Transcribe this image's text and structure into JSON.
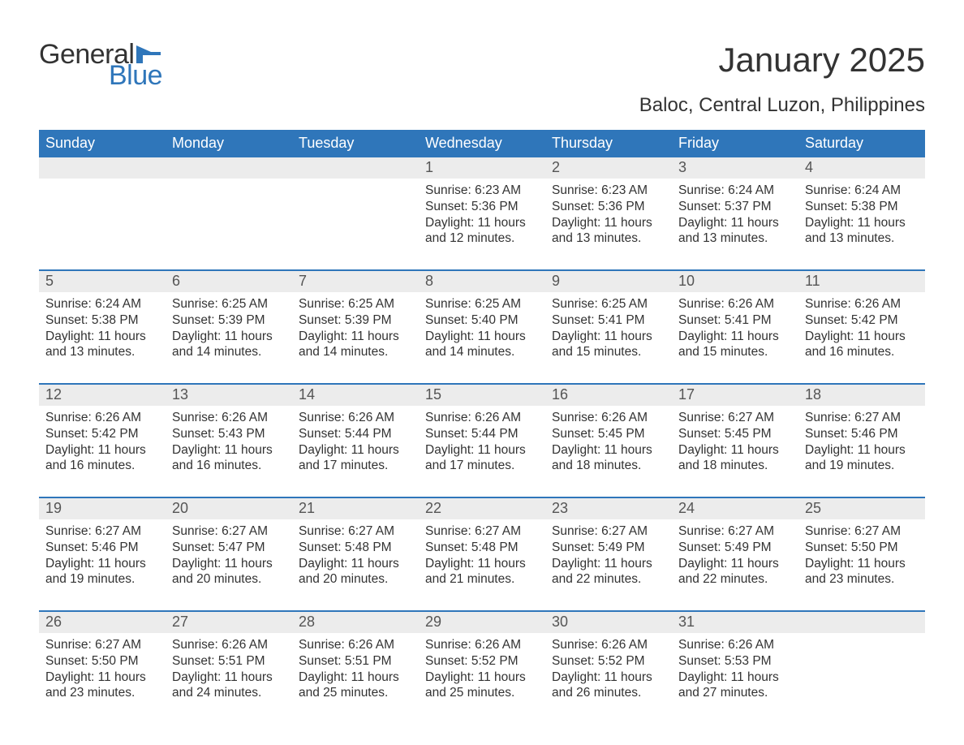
{
  "logo": {
    "text1": "General",
    "text2": "Blue",
    "flag_color": "#2f76ba"
  },
  "title": "January 2025",
  "subtitle": "Baloc, Central Luzon, Philippines",
  "colors": {
    "header_bg": "#2f76ba",
    "header_fg": "#ffffff",
    "daynum_bg": "#ececec",
    "daynum_fg": "#555555",
    "body_fg": "#333333",
    "week_divider": "#2f76ba",
    "page_bg": "#ffffff"
  },
  "typography": {
    "title_fontsize": 42,
    "subtitle_fontsize": 24,
    "dow_fontsize": 18,
    "daynum_fontsize": 18,
    "body_fontsize": 15.5,
    "font_family": "Arial"
  },
  "day_names": [
    "Sunday",
    "Monday",
    "Tuesday",
    "Wednesday",
    "Thursday",
    "Friday",
    "Saturday"
  ],
  "weeks": [
    [
      {
        "n": "",
        "sr": "",
        "ss": "",
        "dl": ""
      },
      {
        "n": "",
        "sr": "",
        "ss": "",
        "dl": ""
      },
      {
        "n": "",
        "sr": "",
        "ss": "",
        "dl": ""
      },
      {
        "n": "1",
        "sr": "Sunrise: 6:23 AM",
        "ss": "Sunset: 5:36 PM",
        "dl": "Daylight: 11 hours and 12 minutes."
      },
      {
        "n": "2",
        "sr": "Sunrise: 6:23 AM",
        "ss": "Sunset: 5:36 PM",
        "dl": "Daylight: 11 hours and 13 minutes."
      },
      {
        "n": "3",
        "sr": "Sunrise: 6:24 AM",
        "ss": "Sunset: 5:37 PM",
        "dl": "Daylight: 11 hours and 13 minutes."
      },
      {
        "n": "4",
        "sr": "Sunrise: 6:24 AM",
        "ss": "Sunset: 5:38 PM",
        "dl": "Daylight: 11 hours and 13 minutes."
      }
    ],
    [
      {
        "n": "5",
        "sr": "Sunrise: 6:24 AM",
        "ss": "Sunset: 5:38 PM",
        "dl": "Daylight: 11 hours and 13 minutes."
      },
      {
        "n": "6",
        "sr": "Sunrise: 6:25 AM",
        "ss": "Sunset: 5:39 PM",
        "dl": "Daylight: 11 hours and 14 minutes."
      },
      {
        "n": "7",
        "sr": "Sunrise: 6:25 AM",
        "ss": "Sunset: 5:39 PM",
        "dl": "Daylight: 11 hours and 14 minutes."
      },
      {
        "n": "8",
        "sr": "Sunrise: 6:25 AM",
        "ss": "Sunset: 5:40 PM",
        "dl": "Daylight: 11 hours and 14 minutes."
      },
      {
        "n": "9",
        "sr": "Sunrise: 6:25 AM",
        "ss": "Sunset: 5:41 PM",
        "dl": "Daylight: 11 hours and 15 minutes."
      },
      {
        "n": "10",
        "sr": "Sunrise: 6:26 AM",
        "ss": "Sunset: 5:41 PM",
        "dl": "Daylight: 11 hours and 15 minutes."
      },
      {
        "n": "11",
        "sr": "Sunrise: 6:26 AM",
        "ss": "Sunset: 5:42 PM",
        "dl": "Daylight: 11 hours and 16 minutes."
      }
    ],
    [
      {
        "n": "12",
        "sr": "Sunrise: 6:26 AM",
        "ss": "Sunset: 5:42 PM",
        "dl": "Daylight: 11 hours and 16 minutes."
      },
      {
        "n": "13",
        "sr": "Sunrise: 6:26 AM",
        "ss": "Sunset: 5:43 PM",
        "dl": "Daylight: 11 hours and 16 minutes."
      },
      {
        "n": "14",
        "sr": "Sunrise: 6:26 AM",
        "ss": "Sunset: 5:44 PM",
        "dl": "Daylight: 11 hours and 17 minutes."
      },
      {
        "n": "15",
        "sr": "Sunrise: 6:26 AM",
        "ss": "Sunset: 5:44 PM",
        "dl": "Daylight: 11 hours and 17 minutes."
      },
      {
        "n": "16",
        "sr": "Sunrise: 6:26 AM",
        "ss": "Sunset: 5:45 PM",
        "dl": "Daylight: 11 hours and 18 minutes."
      },
      {
        "n": "17",
        "sr": "Sunrise: 6:27 AM",
        "ss": "Sunset: 5:45 PM",
        "dl": "Daylight: 11 hours and 18 minutes."
      },
      {
        "n": "18",
        "sr": "Sunrise: 6:27 AM",
        "ss": "Sunset: 5:46 PM",
        "dl": "Daylight: 11 hours and 19 minutes."
      }
    ],
    [
      {
        "n": "19",
        "sr": "Sunrise: 6:27 AM",
        "ss": "Sunset: 5:46 PM",
        "dl": "Daylight: 11 hours and 19 minutes."
      },
      {
        "n": "20",
        "sr": "Sunrise: 6:27 AM",
        "ss": "Sunset: 5:47 PM",
        "dl": "Daylight: 11 hours and 20 minutes."
      },
      {
        "n": "21",
        "sr": "Sunrise: 6:27 AM",
        "ss": "Sunset: 5:48 PM",
        "dl": "Daylight: 11 hours and 20 minutes."
      },
      {
        "n": "22",
        "sr": "Sunrise: 6:27 AM",
        "ss": "Sunset: 5:48 PM",
        "dl": "Daylight: 11 hours and 21 minutes."
      },
      {
        "n": "23",
        "sr": "Sunrise: 6:27 AM",
        "ss": "Sunset: 5:49 PM",
        "dl": "Daylight: 11 hours and 22 minutes."
      },
      {
        "n": "24",
        "sr": "Sunrise: 6:27 AM",
        "ss": "Sunset: 5:49 PM",
        "dl": "Daylight: 11 hours and 22 minutes."
      },
      {
        "n": "25",
        "sr": "Sunrise: 6:27 AM",
        "ss": "Sunset: 5:50 PM",
        "dl": "Daylight: 11 hours and 23 minutes."
      }
    ],
    [
      {
        "n": "26",
        "sr": "Sunrise: 6:27 AM",
        "ss": "Sunset: 5:50 PM",
        "dl": "Daylight: 11 hours and 23 minutes."
      },
      {
        "n": "27",
        "sr": "Sunrise: 6:26 AM",
        "ss": "Sunset: 5:51 PM",
        "dl": "Daylight: 11 hours and 24 minutes."
      },
      {
        "n": "28",
        "sr": "Sunrise: 6:26 AM",
        "ss": "Sunset: 5:51 PM",
        "dl": "Daylight: 11 hours and 25 minutes."
      },
      {
        "n": "29",
        "sr": "Sunrise: 6:26 AM",
        "ss": "Sunset: 5:52 PM",
        "dl": "Daylight: 11 hours and 25 minutes."
      },
      {
        "n": "30",
        "sr": "Sunrise: 6:26 AM",
        "ss": "Sunset: 5:52 PM",
        "dl": "Daylight: 11 hours and 26 minutes."
      },
      {
        "n": "31",
        "sr": "Sunrise: 6:26 AM",
        "ss": "Sunset: 5:53 PM",
        "dl": "Daylight: 11 hours and 27 minutes."
      },
      {
        "n": "",
        "sr": "",
        "ss": "",
        "dl": ""
      }
    ]
  ]
}
